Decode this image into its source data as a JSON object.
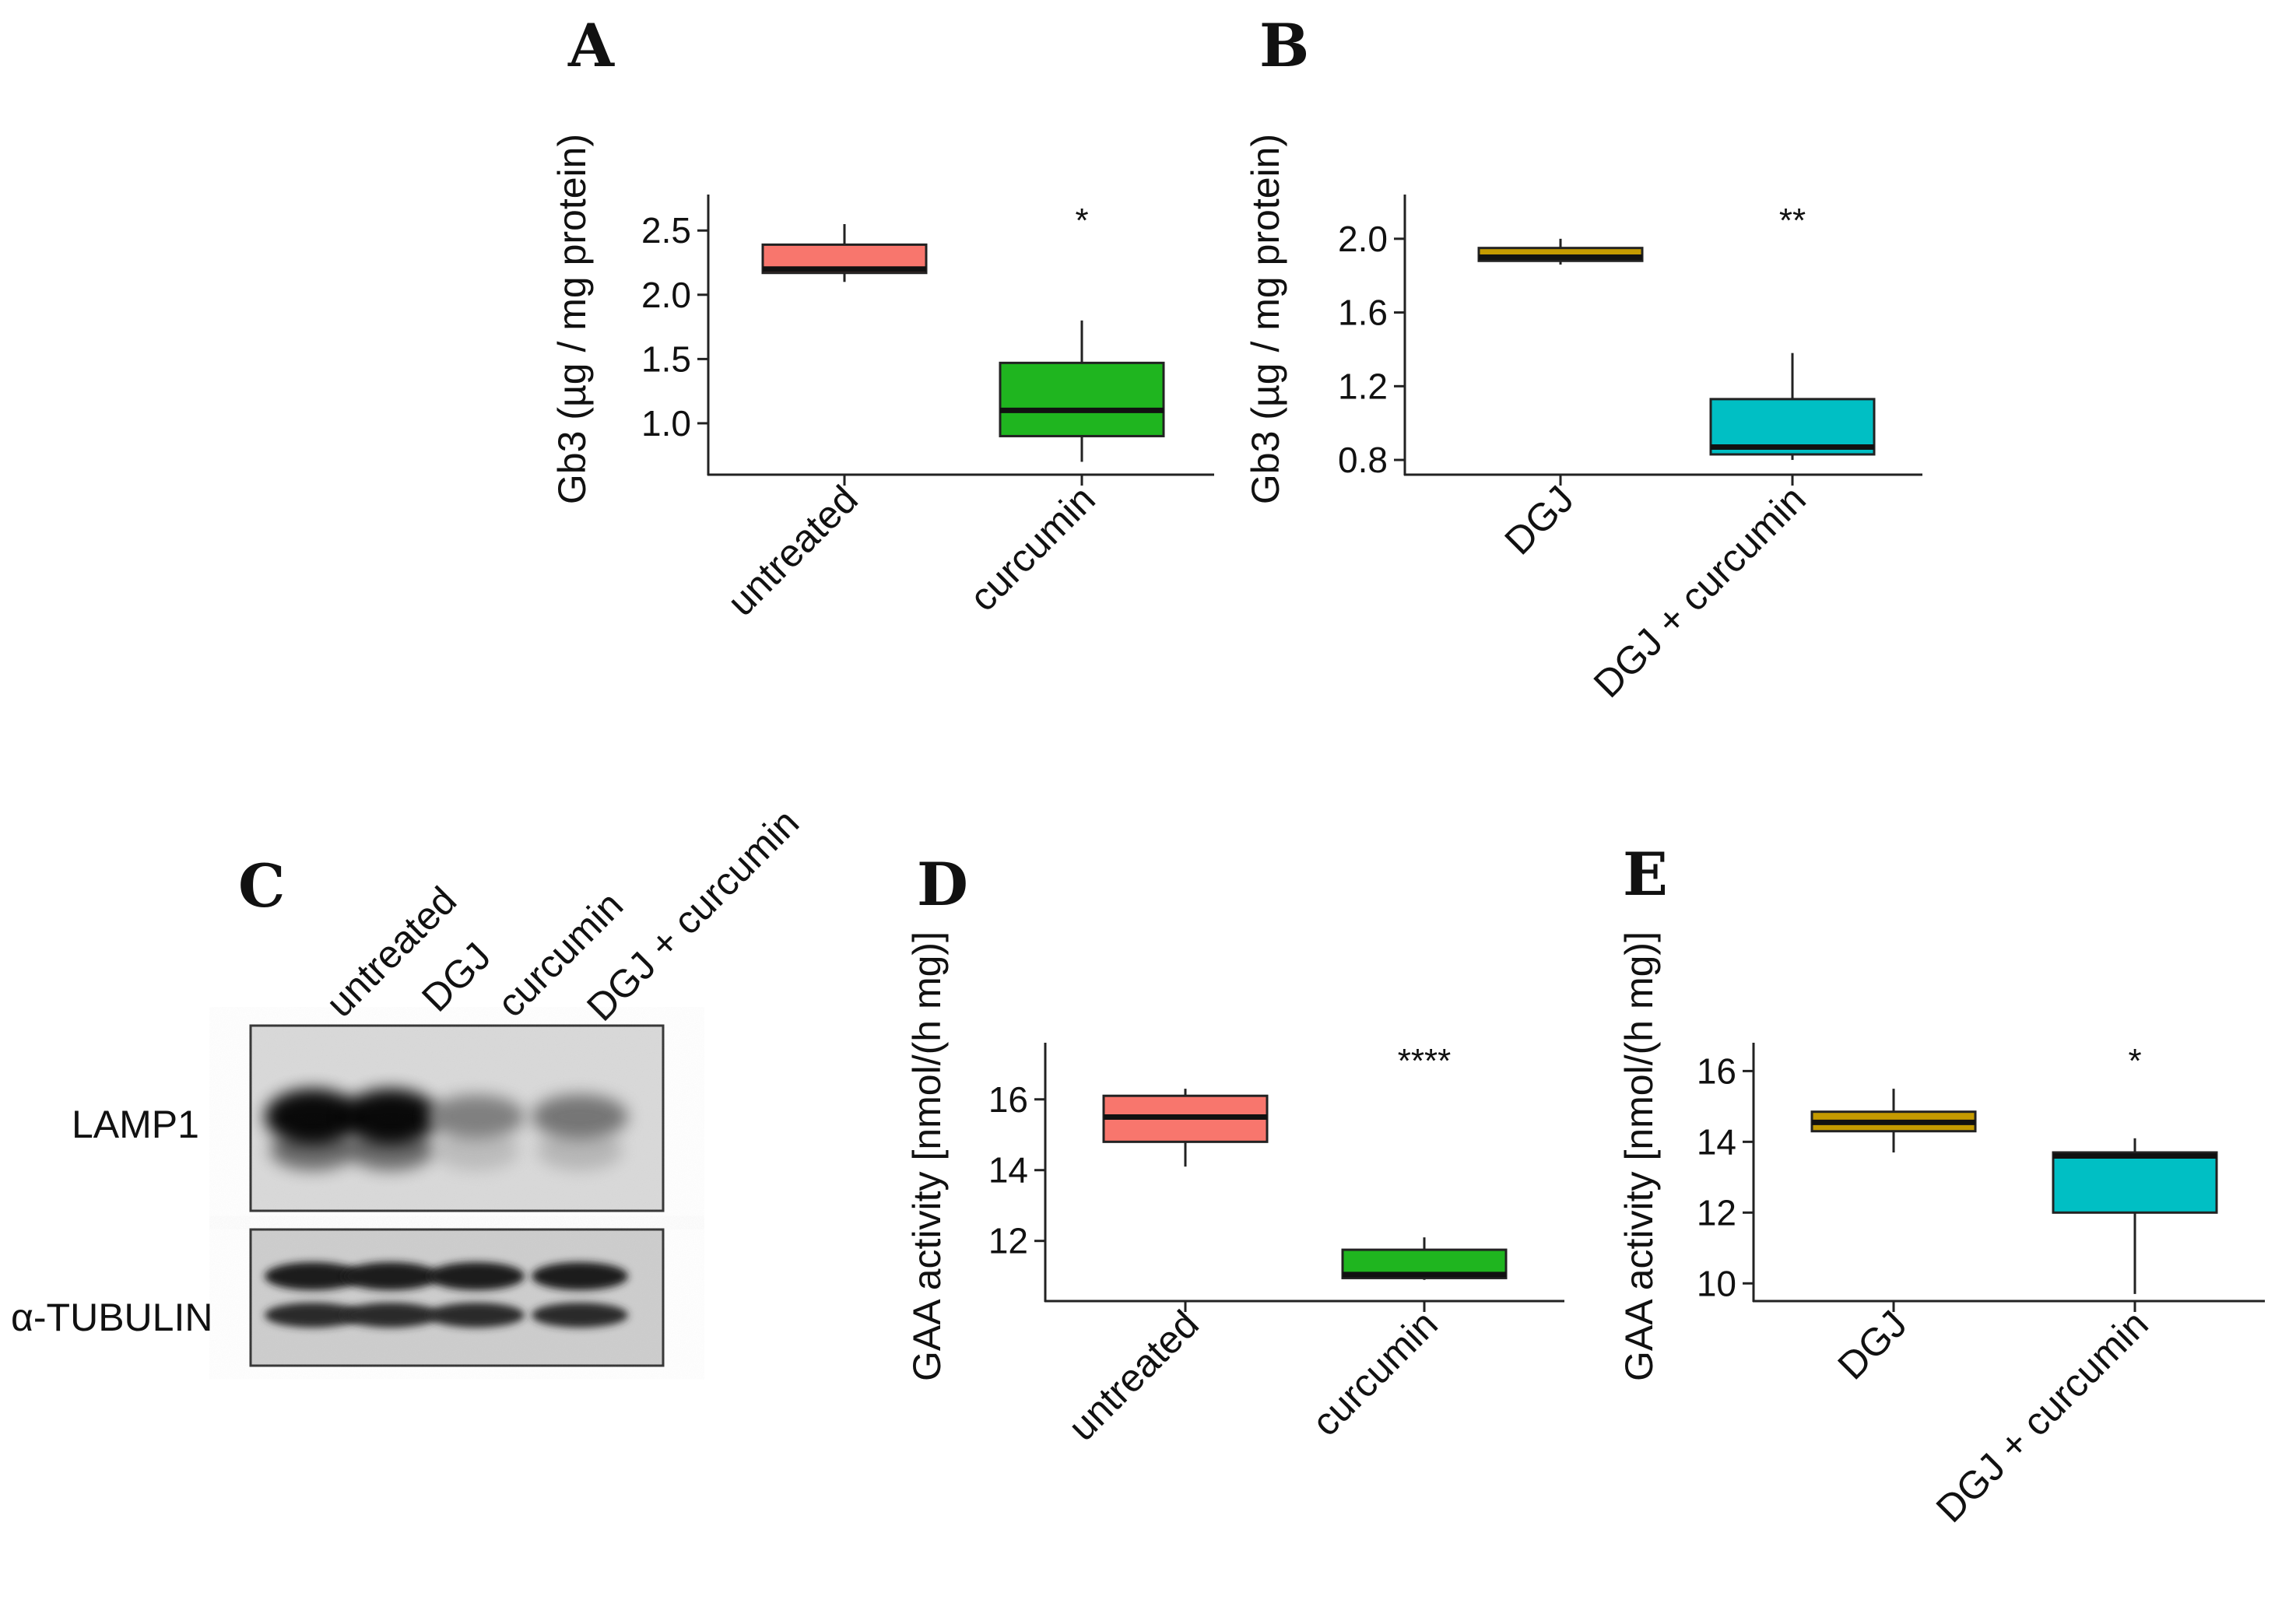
{
  "chart_data": [
    {
      "panel": "A",
      "type": "box",
      "ylabel": "Gb3 (µg / mg protein)",
      "yticks": [
        "1.0",
        "1.5",
        "2.0",
        "2.5"
      ],
      "ytick_values": [
        1.0,
        1.5,
        2.0,
        2.5
      ],
      "ylim": [
        0.6,
        2.78
      ],
      "categories": [
        "untreated",
        "curcumin"
      ],
      "colors": [
        "#F8766D",
        "#1FB51F"
      ],
      "boxes": [
        {
          "min": 2.1,
          "q1": 2.17,
          "median": 2.2,
          "q3": 2.39,
          "max": 2.55
        },
        {
          "min": 0.7,
          "q1": 0.9,
          "median": 1.1,
          "q3": 1.47,
          "max": 1.8
        }
      ],
      "significance": "*"
    },
    {
      "panel": "B",
      "type": "box",
      "ylabel": "Gb3 (µg / mg protein)",
      "yticks": [
        "0.8",
        "1.2",
        "1.6",
        "2.0"
      ],
      "ytick_values": [
        0.8,
        1.2,
        1.6,
        2.0
      ],
      "ylim": [
        0.72,
        2.24
      ],
      "categories": [
        "DGJ",
        "DGJ + curcumin"
      ],
      "colors": [
        "#C49A00",
        "#00BFC4"
      ],
      "boxes": [
        {
          "min": 1.86,
          "q1": 1.88,
          "median": 1.9,
          "q3": 1.95,
          "max": 2.0
        },
        {
          "min": 0.8,
          "q1": 0.83,
          "median": 0.87,
          "q3": 1.13,
          "max": 1.38
        }
      ],
      "significance": "**"
    },
    {
      "panel": "D",
      "type": "box",
      "ylabel": "GAA activity [nmol/(h mg)]",
      "yticks": [
        "12",
        "14",
        "16"
      ],
      "ytick_values": [
        12,
        14,
        16
      ],
      "ylim": [
        10.3,
        17.6
      ],
      "categories": [
        "untreated",
        "curcumin"
      ],
      "colors": [
        "#F8766D",
        "#1FB51F"
      ],
      "boxes": [
        {
          "min": 14.1,
          "q1": 14.8,
          "median": 15.5,
          "q3": 16.1,
          "max": 16.3
        },
        {
          "min": 10.9,
          "q1": 10.95,
          "median": 11.05,
          "q3": 11.75,
          "max": 12.1
        }
      ],
      "significance": "****"
    },
    {
      "panel": "E",
      "type": "box",
      "ylabel": "GAA activity [nmol/(h mg)]",
      "yticks": [
        "10",
        "12",
        "14",
        "16"
      ],
      "ytick_values": [
        10,
        12,
        14,
        16
      ],
      "ylim": [
        9.5,
        16.8
      ],
      "categories": [
        "DGJ",
        "DGJ + curcumin"
      ],
      "colors": [
        "#C49A00",
        "#00BFC4"
      ],
      "boxes": [
        {
          "min": 13.7,
          "q1": 14.3,
          "median": 14.55,
          "q3": 14.85,
          "max": 15.5
        },
        {
          "min": 9.7,
          "q1": 12.0,
          "median": 13.6,
          "q3": 13.7,
          "max": 14.1
        }
      ],
      "significance": "*"
    }
  ],
  "western_blot": {
    "panel": "C",
    "lanes": [
      "untreated",
      "DGJ",
      "curcumin",
      "DGJ + curcumin"
    ],
    "rows": [
      "LAMP1",
      "α-TUBULIN"
    ],
    "lamp1_intensity": [
      1.0,
      1.0,
      0.45,
      0.5
    ]
  }
}
